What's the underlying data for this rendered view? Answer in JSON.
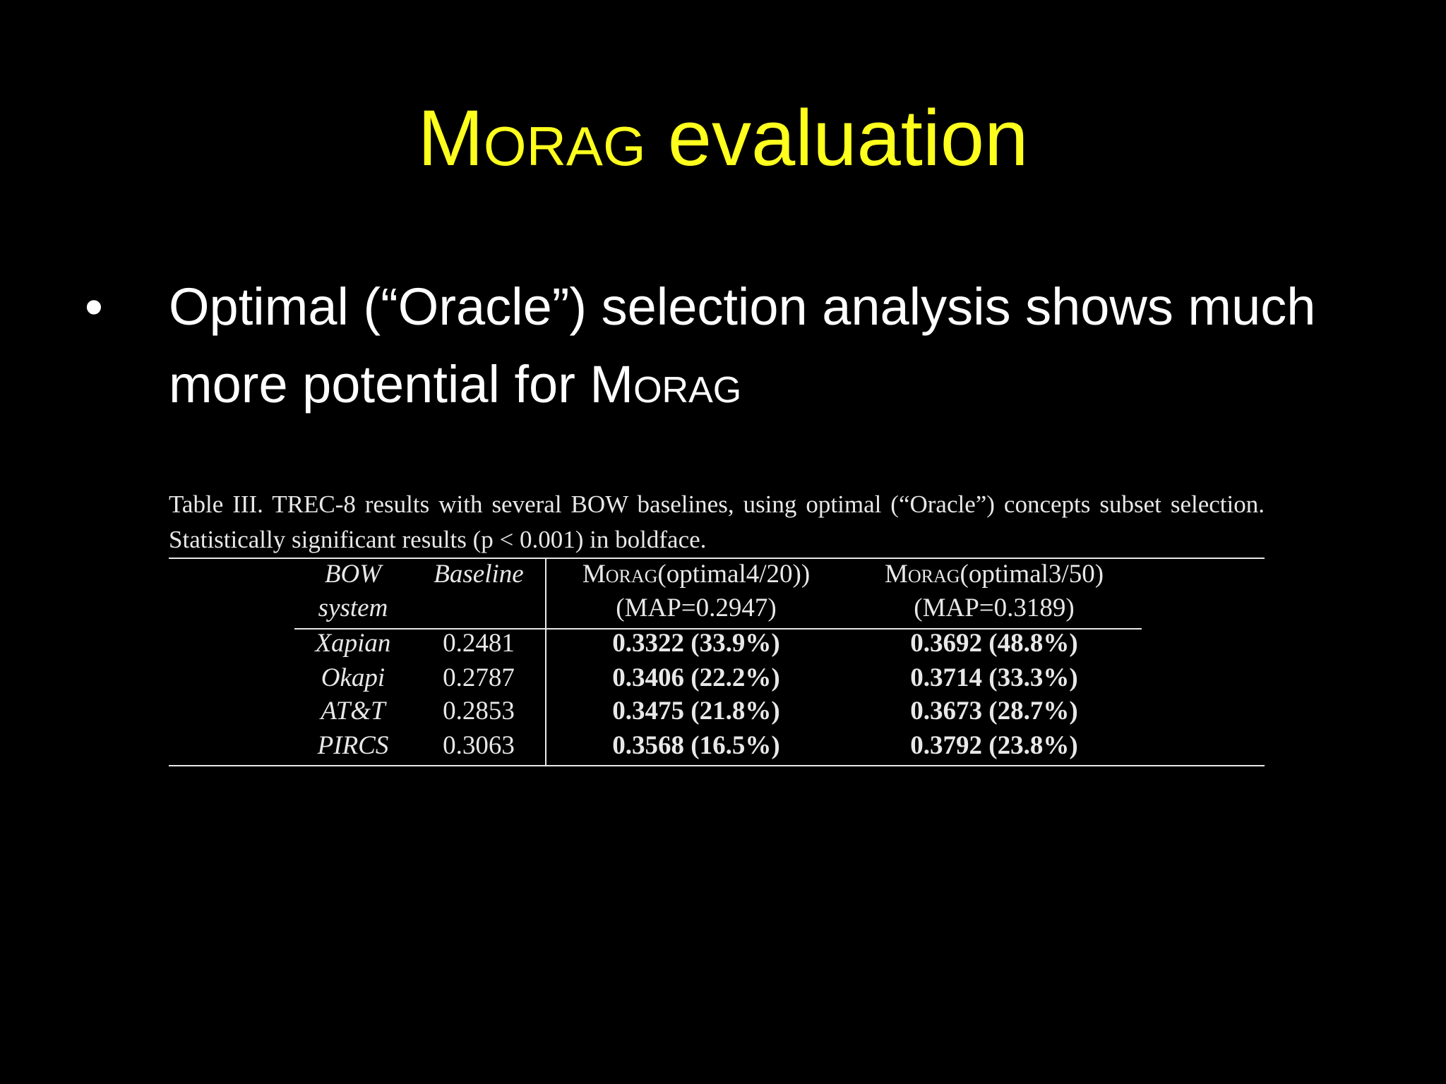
{
  "slide": {
    "title": [
      {
        "text": "Morag",
        "smallcaps": true
      },
      {
        "text": " evaluation"
      }
    ],
    "bullet": {
      "marker": "•",
      "runs": [
        {
          "text": "Optimal (“Oracle”) selection analysis shows much more potential for "
        },
        {
          "text": "Morag",
          "smallcaps": true
        }
      ]
    },
    "table": {
      "caption": "Table III.   TREC-8 results with several BOW baselines, using optimal (“Oracle”) concepts subset selection. Statistically significant results (p < 0.001) in boldface.",
      "header": [
        {
          "lines": [
            "BOW",
            "system"
          ]
        },
        {
          "lines": [
            "Baseline"
          ]
        },
        {
          "prefix": "Morag",
          "lines": [
            "(optimal4/20))",
            "(MAP=0.2947)"
          ]
        },
        {
          "prefix": "Morag",
          "lines": [
            "(optimal3/50)",
            "(MAP=0.3189)"
          ]
        }
      ],
      "rows": [
        [
          "Xapian",
          "0.2481",
          "0.3322 (33.9%)",
          "0.3692 (48.8%)"
        ],
        [
          "Okapi",
          "0.2787",
          "0.3406 (22.2%)",
          "0.3714 (33.3%)"
        ],
        [
          "AT&T",
          "0.2853",
          "0.3475 (21.8%)",
          "0.3673 (28.7%)"
        ],
        [
          "PIRCS",
          "0.3063",
          "0.3568 (16.5%)",
          "0.3792 (23.8%)"
        ]
      ]
    }
  }
}
